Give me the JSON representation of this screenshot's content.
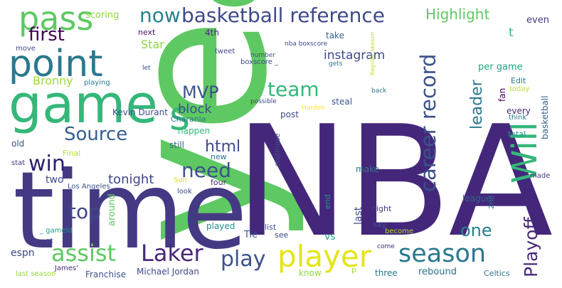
{
  "words": [
    {
      "text": "year",
      "color": "#5ec962"
    },
    {
      "text": "NBA",
      "color": "#44277a"
    },
    {
      "text": "time",
      "color": "#443a83"
    },
    {
      "text": "game",
      "color": "#35b779"
    },
    {
      "text": "point",
      "color": "#2a788e"
    },
    {
      "text": "pass",
      "color": "#5ec962"
    },
    {
      "text": "player",
      "color": "#e5e419"
    },
    {
      "text": "season",
      "color": "#2a788e"
    },
    {
      "text": "Will",
      "color": "#35b779"
    },
    {
      "text": "assist",
      "color": "#5ec962"
    },
    {
      "text": "Laker",
      "color": "#482878"
    },
    {
      "text": "play",
      "color": "#3b528b"
    },
    {
      "text": "career record",
      "color": "#3b528b"
    },
    {
      "text": "Playoff",
      "color": "#482878"
    },
    {
      "text": "basketball reference",
      "color": "#3e4a89"
    },
    {
      "text": "now",
      "color": "#26828e"
    },
    {
      "text": "first",
      "color": "#440154"
    },
    {
      "text": "win",
      "color": "#2d1e6e"
    },
    {
      "text": "top",
      "color": "#404688"
    },
    {
      "text": "team",
      "color": "#35b779"
    },
    {
      "text": "need",
      "color": "#3b528b"
    },
    {
      "text": "Source",
      "color": "#355f8d"
    },
    {
      "text": "s",
      "color": "#35b779"
    },
    {
      "text": "html",
      "color": "#3e4989"
    },
    {
      "text": "MVP",
      "color": "#3b528b"
    },
    {
      "text": "one",
      "color": "#27808e"
    },
    {
      "text": "leader",
      "color": "#2a788e"
    },
    {
      "text": "Highlight",
      "color": "#5ec962"
    },
    {
      "text": "instagram",
      "color": "#3e4989"
    },
    {
      "text": "block",
      "color": "#3b528b"
    },
    {
      "text": "Star",
      "color": "#8fd744"
    },
    {
      "text": "Bronny",
      "color": "#a0da39"
    },
    {
      "text": "tonight",
      "color": "#404688"
    },
    {
      "text": "scoring",
      "color": "#8fd744"
    },
    {
      "text": "4th",
      "color": "#482878"
    },
    {
      "text": "next",
      "color": "#481567"
    },
    {
      "text": "take",
      "color": "#33638d"
    },
    {
      "text": "tweet",
      "color": "#404688"
    },
    {
      "text": "per game",
      "color": "#20a486"
    },
    {
      "text": "t",
      "color": "#35b779"
    },
    {
      "text": "even",
      "color": "#443983"
    },
    {
      "text": "Edit",
      "color": "#2a788e"
    },
    {
      "text": "today",
      "color": "#bddf26"
    },
    {
      "text": "fan",
      "color": "#440154"
    },
    {
      "text": "every",
      "color": "#482878"
    },
    {
      "text": "think",
      "color": "#2a788e"
    },
    {
      "text": "total",
      "color": "#1f988b"
    },
    {
      "text": "basketball",
      "color": "#355f8d"
    },
    {
      "text": "made",
      "color": "#443983"
    },
    {
      "text": "Kevin Durant",
      "color": "#3b528b"
    },
    {
      "text": "Charania",
      "color": "#2a788e"
    },
    {
      "text": "happen",
      "color": "#35b779"
    },
    {
      "text": "still",
      "color": "#33638d"
    },
    {
      "text": "post",
      "color": "#3e4a89"
    },
    {
      "text": "steal",
      "color": "#3b528b"
    },
    {
      "text": "make",
      "color": "#2a788e"
    },
    {
      "text": "end",
      "color": "#21918c"
    },
    {
      "text": "last",
      "color": "#3e4989"
    },
    {
      "text": "night",
      "color": "#443983"
    },
    {
      "text": "league",
      "color": "#33638d"
    },
    {
      "text": "2nd",
      "color": "#2d708e"
    },
    {
      "text": "say",
      "color": "#3b528b"
    },
    {
      "text": "vs",
      "color": "#20a486"
    },
    {
      "text": "become",
      "color": "#b5de2b"
    },
    {
      "text": "rebound",
      "color": "#2c728e"
    },
    {
      "text": "Celtics",
      "color": "#2a788e"
    },
    {
      "text": "three",
      "color": "#2a788e"
    },
    {
      "text": "know",
      "color": "#8fd744"
    },
    {
      "text": "p",
      "color": "#a0da39"
    },
    {
      "text": "list",
      "color": "#3b528b"
    },
    {
      "text": "see",
      "color": "#3e4989"
    },
    {
      "text": "Tie",
      "color": "#3b528b"
    },
    {
      "text": "played",
      "color": "#21918c"
    },
    {
      "text": "four",
      "color": "#482878"
    },
    {
      "text": "look",
      "color": "#3e4989"
    },
    {
      "text": "Sun",
      "color": "#dde318"
    },
    {
      "text": "new",
      "color": "#2a788e"
    },
    {
      "text": "statmuse",
      "color": "#3b528b"
    },
    {
      "text": "Michael Jordan",
      "color": "#3e4989"
    },
    {
      "text": "Franchise",
      "color": "#3b528b"
    },
    {
      "text": "James'",
      "color": "#482878"
    },
    {
      "text": "last season",
      "color": "#95d840"
    },
    {
      "text": "espn",
      "color": "#3e4989"
    },
    {
      "text": "pt",
      "color": "#3e4989"
    },
    {
      "text": "_ gameId",
      "color": "#1f988b"
    },
    {
      "text": "Los Angeles",
      "color": "#3b528b"
    },
    {
      "text": "two",
      "color": "#3e4989"
    },
    {
      "text": "Final",
      "color": "#b5de2b"
    },
    {
      "text": "around",
      "color": "#5ec962"
    },
    {
      "text": "stat",
      "color": "#443983"
    },
    {
      "text": "old",
      "color": "#3b528b"
    },
    {
      "text": "move",
      "color": "#3e4989"
    },
    {
      "text": "let",
      "color": "#3e4a89"
    },
    {
      "text": "playing",
      "color": "#2a788e"
    },
    {
      "text": "number",
      "color": "#3b528b"
    },
    {
      "text": "boxscore _",
      "color": "#3e4989"
    },
    {
      "text": "possible",
      "color": "#3e4989"
    },
    {
      "text": "back",
      "color": "#2a788e"
    },
    {
      "text": "Harden",
      "color": "#fde725"
    },
    {
      "text": "gets",
      "color": "#2a788e"
    },
    {
      "text": "nba boxscore",
      "color": "#3e4989"
    },
    {
      "text": "Regular season",
      "color": "#bddf26"
    },
    {
      "text": "come",
      "color": "#482878"
    }
  ]
}
